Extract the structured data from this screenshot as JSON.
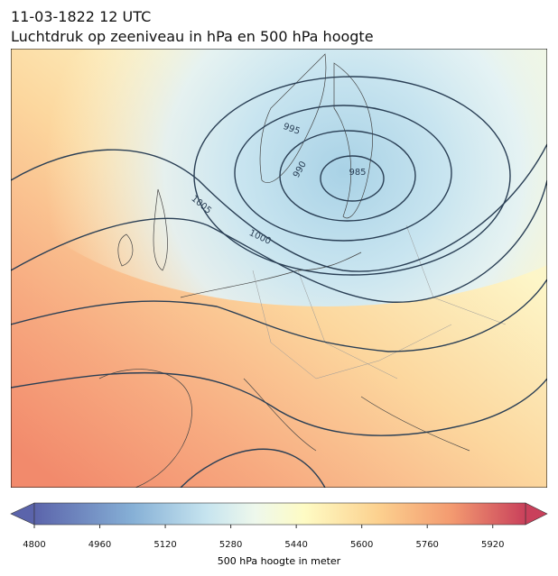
{
  "title": [
    "11-03-1822 12 UTC",
    "Luchtdruk op zeeniveau in hPa en 500 hPa hoogte"
  ],
  "map": {
    "isobar_labels": [
      995,
      990,
      985,
      1005,
      1000
    ]
  },
  "colorbar": {
    "label": "500 hPa hoogte in meter",
    "range": [
      4800,
      6000
    ],
    "ticks": [
      4800,
      4960,
      5120,
      5280,
      5440,
      5600,
      5760,
      5920
    ]
  }
}
